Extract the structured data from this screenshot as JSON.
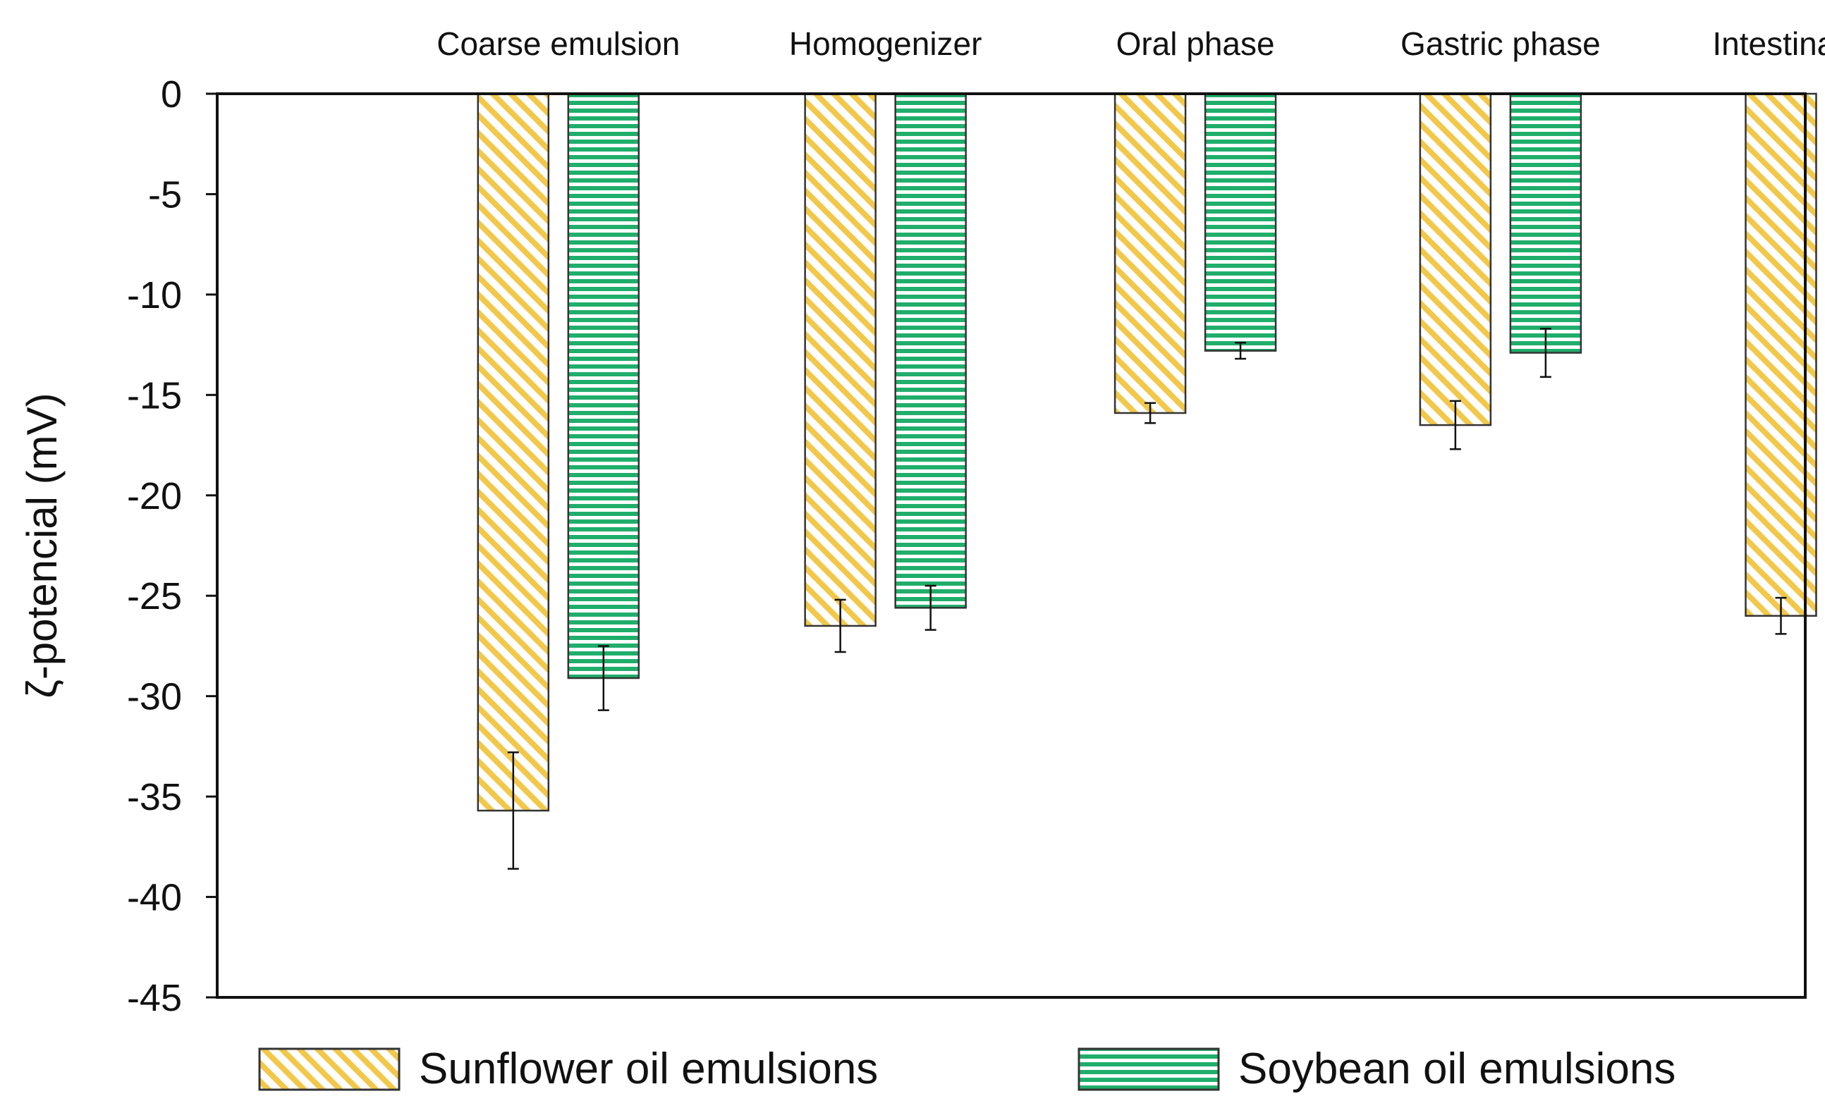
{
  "chart_data": {
    "type": "bar",
    "title": "",
    "xlabel": "",
    "ylabel": "ζ-potencial (mV)",
    "categories": [
      "Coarse emulsion",
      "Homogenizer",
      "Oral phase",
      "Gastric phase",
      "Intestinal phase"
    ],
    "category_axis_position": "top",
    "ylim": [
      -45,
      0
    ],
    "yticks": [
      0,
      -5,
      -10,
      -15,
      -20,
      -25,
      -30,
      -35,
      -40,
      -45
    ],
    "grid": false,
    "legend": {
      "position": "bottom"
    },
    "series": [
      {
        "name": "Sunflower oil emulsions",
        "values": [
          -35.7,
          -26.5,
          -15.9,
          -16.5,
          -26.0
        ],
        "errors": [
          2.9,
          1.3,
          0.5,
          1.2,
          0.9
        ],
        "color": "#f2c84b",
        "pattern": "diagonal-hatch"
      },
      {
        "name": "Soybean oil emulsions",
        "values": [
          -29.1,
          -25.6,
          -12.8,
          -12.9,
          -25.0
        ],
        "errors": [
          1.6,
          1.1,
          0.4,
          1.2,
          1.9
        ],
        "color": "#1fae6b",
        "pattern": "horizontal-stripes"
      }
    ]
  }
}
